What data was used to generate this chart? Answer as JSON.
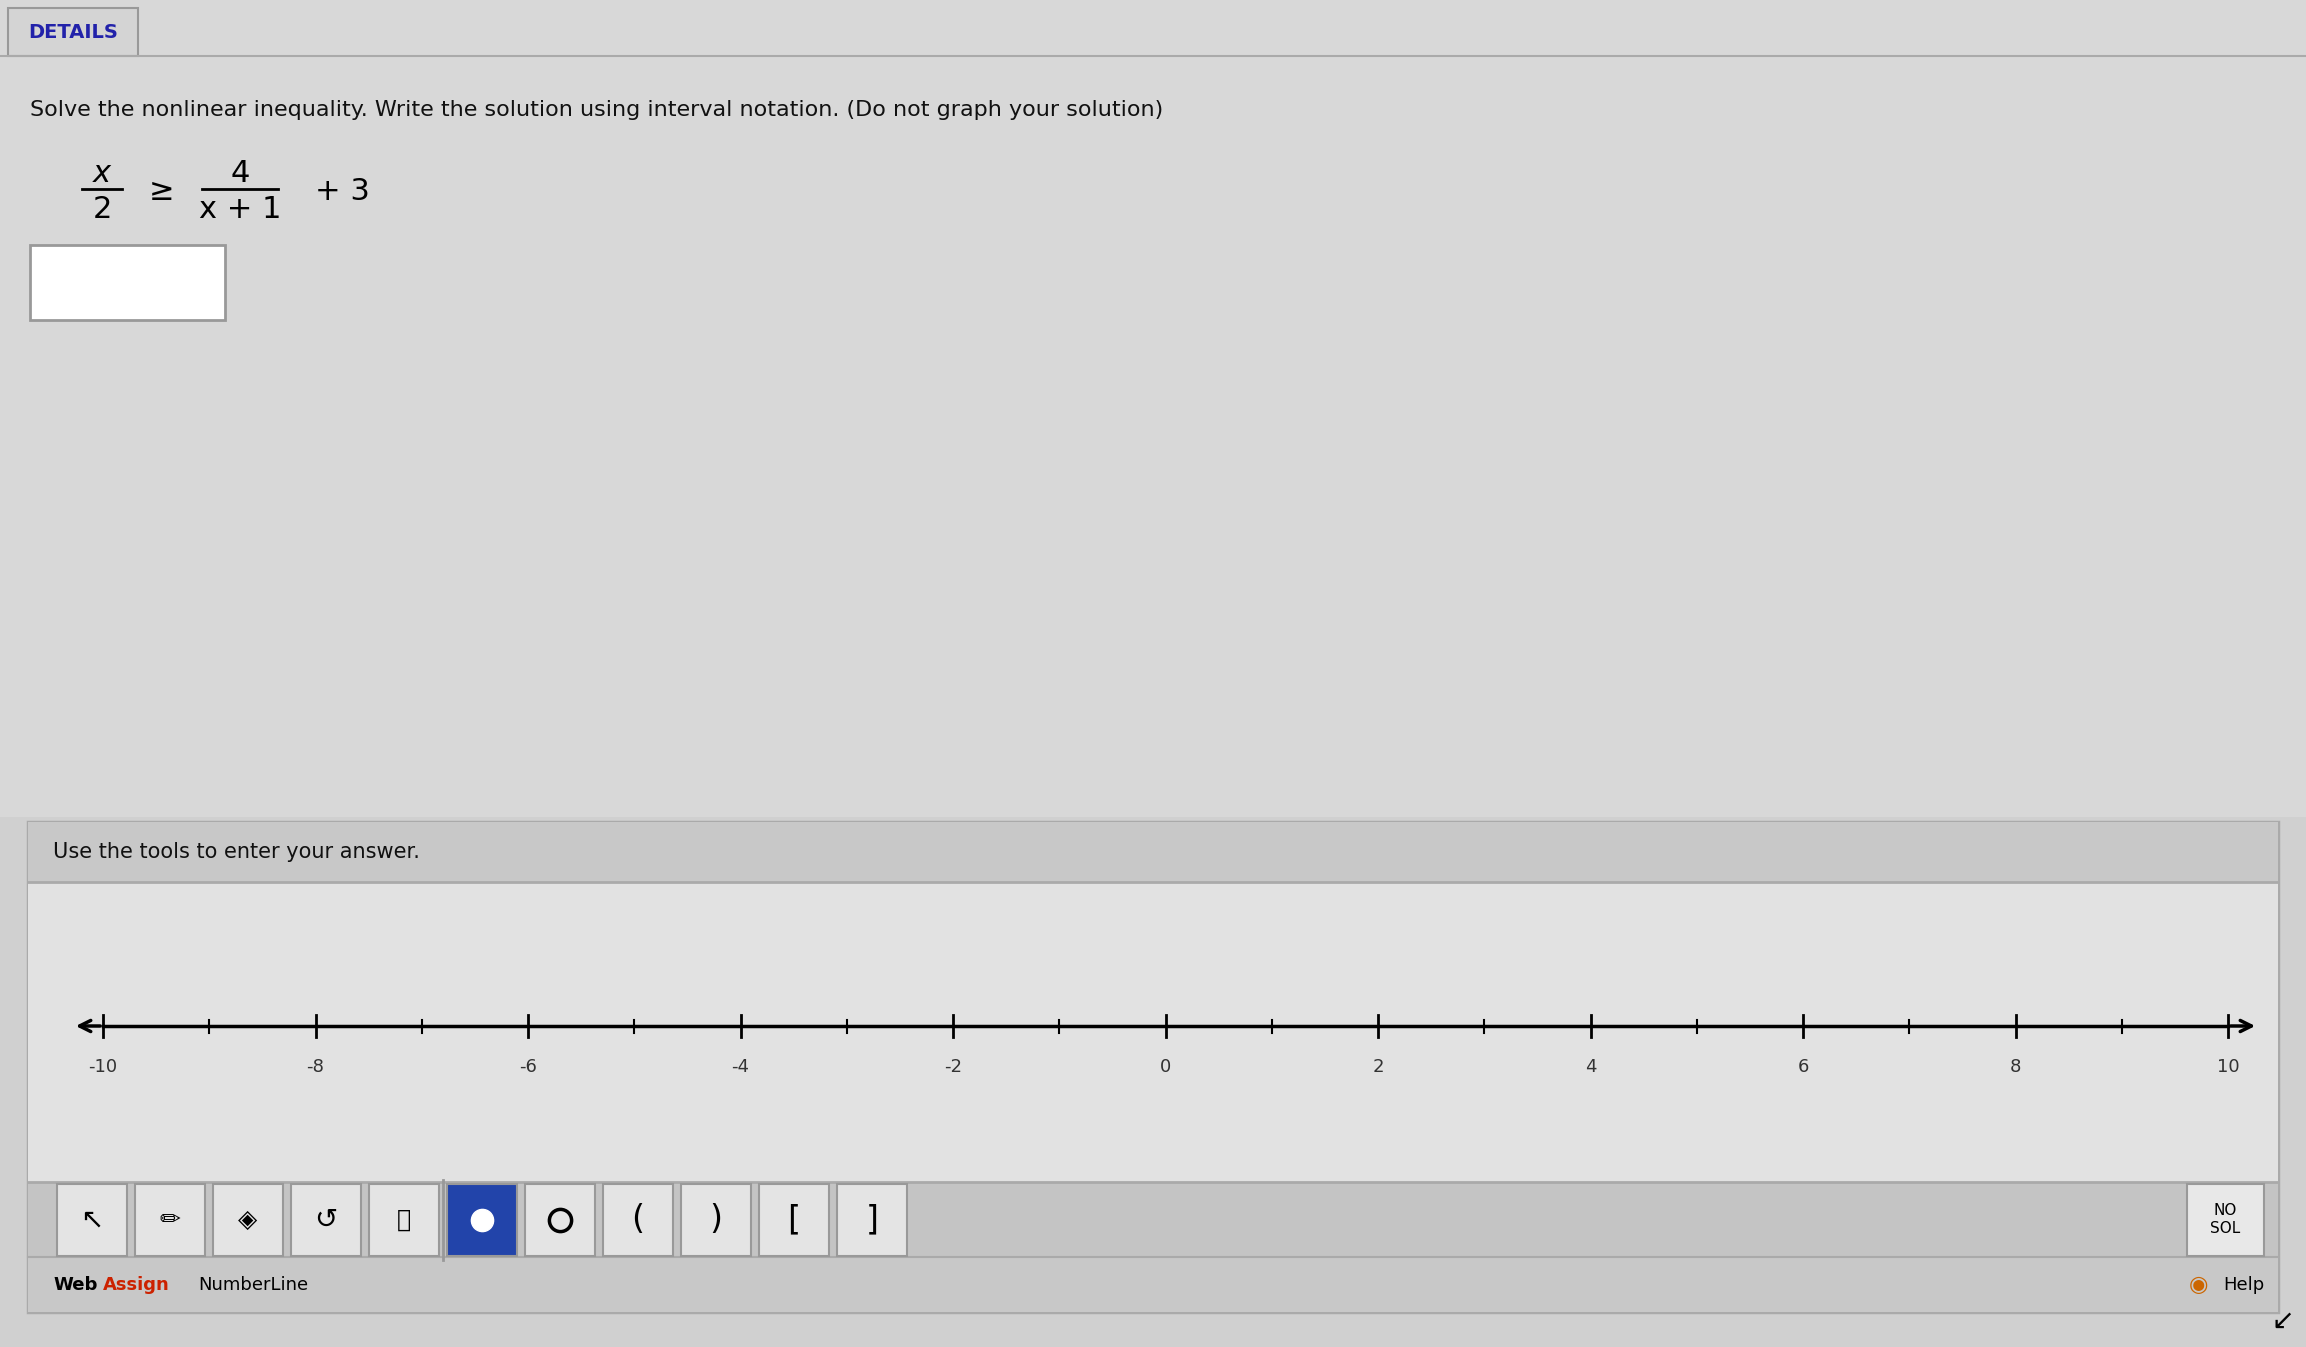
{
  "bg_color": "#d0d0d0",
  "top_area_color": "#d8d8d8",
  "tool_box_outer_color": "#c8c8c8",
  "tool_box_inner_nl_color": "#e2e2e2",
  "tool_bar_color": "#c4c4c4",
  "tool_bot_bar_color": "#c8c8c8",
  "title_text": "Solve the nonlinear inequality. Write the solution using interval notation. (Do not graph your solution)",
  "title_fontsize": 16,
  "eq_x_num": "x",
  "eq_x_den": "2",
  "eq_geq": "≥",
  "eq_frac_num": "4",
  "eq_frac_den": "x + 1",
  "eq_plus3": "+ 3",
  "details_text": "DETAILS",
  "details_fg": "#2222aa",
  "use_tools_text": "Use the tools to enter your answer.",
  "numberline_min": -10,
  "numberline_max": 10,
  "tick_majors": [
    -10,
    -8,
    -6,
    -4,
    -2,
    0,
    2,
    4,
    6,
    8,
    10
  ],
  "tick_labels": [
    "-10",
    "-8",
    "-6",
    "-4",
    "-2",
    "0",
    "2",
    "4",
    "6",
    "8",
    "10"
  ],
  "filled_button_color": "#2244aa",
  "no_sol_text": "NO\nSOL",
  "webassign_color": "#cc2200",
  "numberline_label": "NumberLine",
  "help_text": "Help"
}
